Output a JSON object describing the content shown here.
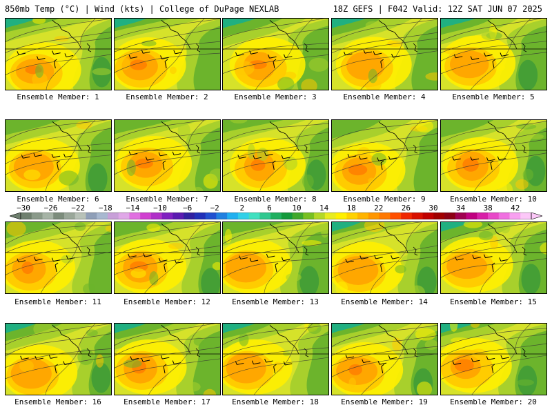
{
  "header": {
    "left": "850mb Temp (°C) | Wind (kts) | College of DuPage NEXLAB",
    "right": "18Z GEFS | F042 Valid: 12Z SAT JUN 07 2025"
  },
  "panels": [
    {
      "label": "Ensemble Member: 1"
    },
    {
      "label": "Ensemble Member: 2"
    },
    {
      "label": "Ensemble Member: 3"
    },
    {
      "label": "Ensemble Member: 4"
    },
    {
      "label": "Ensemble Member: 5"
    },
    {
      "label": "Ensemble Member: 6"
    },
    {
      "label": "Ensemble Member: 7"
    },
    {
      "label": "Ensemble Member: 8"
    },
    {
      "label": "Ensemble Member: 9"
    },
    {
      "label": "Ensemble Member: 10"
    },
    {
      "label": "Ensemble Member: 11"
    },
    {
      "label": "Ensemble Member: 12"
    },
    {
      "label": "Ensemble Member: 13"
    },
    {
      "label": "Ensemble Member: 14"
    },
    {
      "label": "Ensemble Member: 15"
    },
    {
      "label": "Ensemble Member: 16"
    },
    {
      "label": "Ensemble Member: 17"
    },
    {
      "label": "Ensemble Member: 18"
    },
    {
      "label": "Ensemble Member: 19"
    },
    {
      "label": "Ensemble Member: 20"
    }
  ],
  "colorbar": {
    "labels": [
      "−30",
      "−26",
      "−22",
      "−18",
      "−14",
      "−10",
      "−6",
      "−2",
      "2",
      "6",
      "10",
      "14",
      "18",
      "22",
      "26",
      "30",
      "34",
      "38",
      "42"
    ],
    "colors": [
      "#6e7f6e",
      "#8a9a8a",
      "#a6b4a6",
      "#7c8c7c",
      "#9aa79a",
      "#b8c2b8",
      "#8f9fb8",
      "#a8b8d0",
      "#c8a0d8",
      "#e0a8e8",
      "#e070e0",
      "#d040d0",
      "#b030c8",
      "#8020c0",
      "#5a1ab0",
      "#3020a0",
      "#2030b8",
      "#2050d0",
      "#2080e0",
      "#20b0f0",
      "#30d0e8",
      "#40e0c0",
      "#30c890",
      "#20b060",
      "#149a3c",
      "#40a82c",
      "#78c022",
      "#b4d828",
      "#e8ec20",
      "#fff000",
      "#ffd200",
      "#ffb400",
      "#ff9600",
      "#ff7800",
      "#ff5000",
      "#f02800",
      "#d81000",
      "#c00000",
      "#a00000",
      "#8c0014",
      "#a00050",
      "#c00080",
      "#d820a8",
      "#e848c8",
      "#f070e0",
      "#f8a0f0",
      "#fcc8f8"
    ]
  },
  "palette": {
    "dark_green": "#3c9a38",
    "green": "#6cb42c",
    "lime": "#a8d02c",
    "yellow_green": "#d6e22a",
    "yellow": "#fff000",
    "gold": "#ffc800",
    "orange": "#ffa000",
    "deep_orange": "#ff7c00",
    "teal": "#20b080"
  }
}
